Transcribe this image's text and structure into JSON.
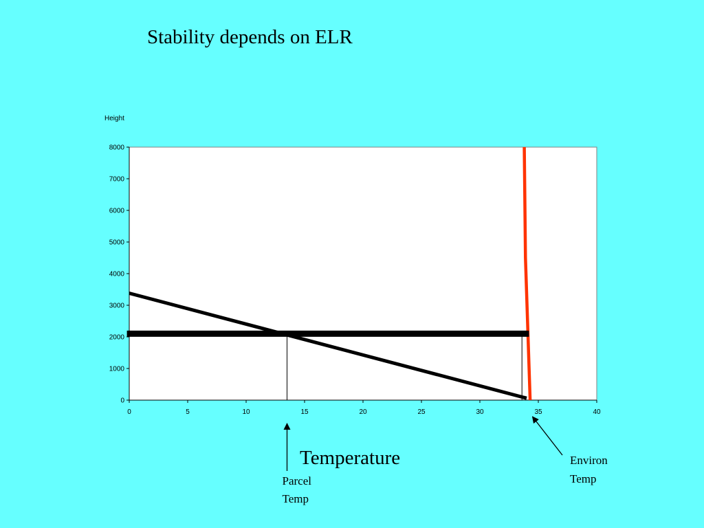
{
  "slide": {
    "title": "Stability depends on ELR"
  },
  "chart_data": {
    "type": "line",
    "title": "",
    "xlabel": "Temperature",
    "ylabel": "Height",
    "xlim": [
      0,
      40
    ],
    "ylim": [
      0,
      8000
    ],
    "x_ticks": [
      0,
      5,
      10,
      15,
      20,
      25,
      30,
      35,
      40
    ],
    "y_ticks": [
      0,
      1000,
      2000,
      3000,
      4000,
      5000,
      6000,
      7000,
      8000
    ],
    "grid": false,
    "legend": "none",
    "series": [
      {
        "color": "#000000",
        "points": [
          [
            0,
            3380
          ],
          [
            34,
            60
          ]
        ]
      },
      {
        "color": "#FF3300",
        "points": [
          [
            33.8,
            8000
          ],
          [
            33.9,
            4500
          ],
          [
            34.3,
            0
          ]
        ]
      },
      {
        "color": "#000000",
        "points": [
          [
            -0.2,
            2100
          ],
          [
            34.2,
            2100
          ]
        ]
      }
    ],
    "reference_lines": [
      {
        "x": 13.5,
        "y_from": 0,
        "y_to": 2100
      },
      {
        "x": 33.6,
        "y_from": 0,
        "y_to": 2100
      }
    ],
    "annotations": {
      "parcel_line1": "Parcel",
      "parcel_line2": "Temp",
      "parcel_x": 13.5,
      "environ_line1": "Environ",
      "environ_line2": "Temp",
      "environ_x": 34.5
    }
  }
}
